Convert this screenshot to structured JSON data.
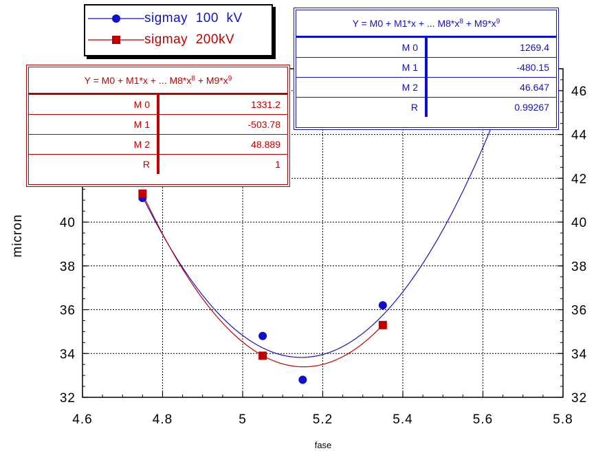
{
  "chart_data": {
    "type": "scatter",
    "xlabel": "fase",
    "ylabel": "micron",
    "xlim": [
      4.6,
      5.8
    ],
    "ylim": [
      32,
      47
    ],
    "xticks": [
      "4.6",
      "4.8",
      "5",
      "5.2",
      "5.4",
      "5.6",
      "5.8"
    ],
    "yticks": [
      "32",
      "34",
      "36",
      "38",
      "40",
      "42",
      "44",
      "46"
    ],
    "grid": true,
    "legend_position": "top-left",
    "series": [
      {
        "name": "sigmay  100  kV",
        "color": "#1010cc",
        "marker": "circle",
        "x": [
          4.75,
          5.05,
          5.15,
          5.35
        ],
        "y": [
          41.1,
          34.8,
          32.8,
          36.2
        ],
        "fit": {
          "equation": "Y = M0 + M1*x + ... M8*x",
          "eq_exp1": "8",
          "eq_mid": " + M9*x",
          "eq_exp2": "9",
          "rows": [
            {
              "k": "M 0",
              "v": "1269.4"
            },
            {
              "k": "M 1",
              "v": "-480.15"
            },
            {
              "k": "M 2",
              "v": "46.647"
            },
            {
              "k": "R",
              "v": "0.99267"
            }
          ],
          "m0": 1269.4,
          "m1": -480.15,
          "m2": 46.647
        }
      },
      {
        "name": "sigmay  200kV",
        "color": "#c00000",
        "marker": "square",
        "x": [
          4.75,
          5.05,
          5.35
        ],
        "y": [
          41.3,
          33.9,
          35.3
        ],
        "fit": {
          "equation": "Y = M0 + M1*x + ... M8*x",
          "eq_exp1": "8",
          "eq_mid": " + M9*x",
          "eq_exp2": "9",
          "rows": [
            {
              "k": "M 0",
              "v": "1331.2"
            },
            {
              "k": "M 1",
              "v": "-503.78"
            },
            {
              "k": "M 2",
              "v": "48.889"
            },
            {
              "k": "R",
              "v": "1"
            }
          ],
          "m0": 1331.2,
          "m1": -503.78,
          "m2": 48.889
        }
      }
    ]
  }
}
